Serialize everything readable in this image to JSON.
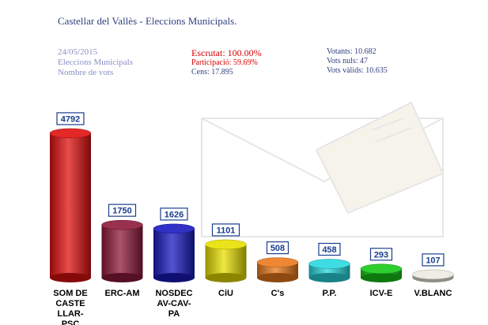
{
  "header": {
    "title": "Castellar del Vallès - Eleccions Municipals.",
    "date": "24/05/2015",
    "election": "Eleccions Municipals",
    "measure": "Nombre de vots",
    "escrutat": "Escrutat: 100.00%",
    "participacio": "Participació: 59.69%",
    "cens": "Cens: 17.895",
    "votants": "Votants: 10.682",
    "nuls": "Vots nuls: 47",
    "valids": "Vots vàlids: 10.635"
  },
  "chart_data": {
    "type": "bar",
    "categories": [
      "SOM DE CASTE LLAR-PSC",
      "ERC-AM",
      "NOSDEC AV-CAV-PA",
      "CiU",
      "C's",
      "P.P.",
      "ICV-E",
      "V.BLANC"
    ],
    "category_lines": [
      [
        "SOM DE",
        "CASTE",
        "LLAR-",
        "PSC"
      ],
      [
        "ERC-AM"
      ],
      [
        "NOSDEC",
        "AV-CAV-",
        "PA"
      ],
      [
        "CiU"
      ],
      [
        "C's"
      ],
      [
        "P.P."
      ],
      [
        "ICV-E"
      ],
      [
        "V.BLANC"
      ]
    ],
    "values": [
      4792,
      1750,
      1626,
      1101,
      508,
      458,
      293,
      107
    ],
    "value_labels": [
      "4792",
      "1750",
      "1626",
      "1101",
      "508",
      "458",
      "293",
      "107"
    ],
    "colors": [
      "#e01010",
      "#8e1a3a",
      "#1a1ac0",
      "#e8e000",
      "#ec7a1c",
      "#2ad8e0",
      "#18c818",
      "#ecebe0"
    ]
  }
}
